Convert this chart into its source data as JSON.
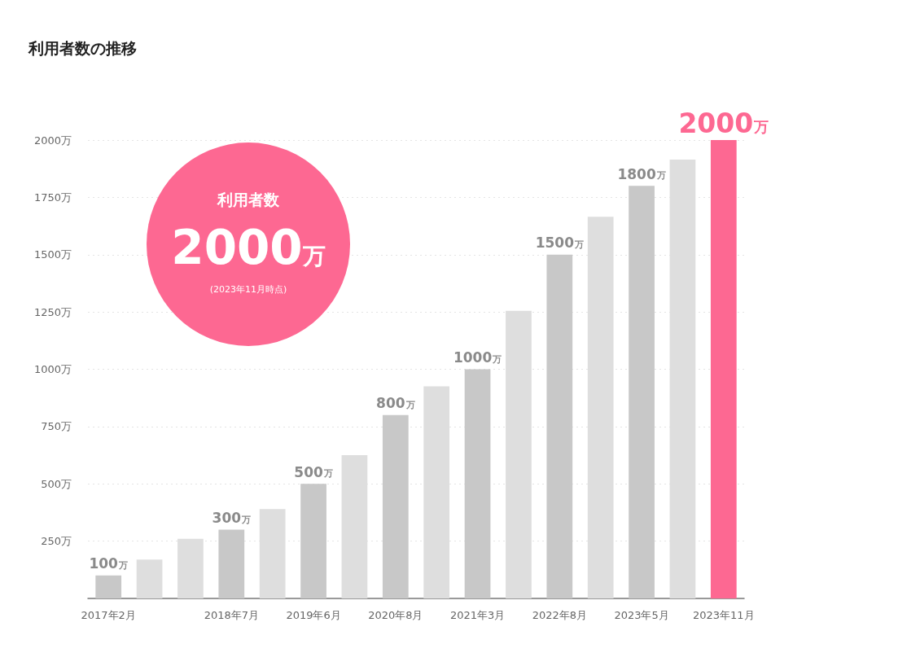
{
  "chart_data": {
    "type": "bar",
    "title": "利用者数の推移",
    "categories": [
      "2017年2月",
      null,
      null,
      "2018年7月",
      null,
      "2019年6月",
      null,
      "2020年8月",
      null,
      "2021年3月",
      null,
      "2022年8月",
      null,
      "2023年5月",
      null,
      "2023年11月"
    ],
    "values": [
      100,
      170,
      260,
      300,
      390,
      500,
      625,
      800,
      925,
      1000,
      1255,
      1500,
      1665,
      1800,
      1915,
      2000
    ],
    "colors": [
      "#c8c8c8",
      "#dedede",
      "#dedede",
      "#c8c8c8",
      "#dedede",
      "#c8c8c8",
      "#dedede",
      "#c8c8c8",
      "#dedede",
      "#c8c8c8",
      "#dedede",
      "#c8c8c8",
      "#dedede",
      "#c8c8c8",
      "#dedede",
      "#fd6892"
    ],
    "value_labels": [
      "100万",
      null,
      null,
      "300万",
      null,
      "500万",
      null,
      "800万",
      null,
      "1000万",
      null,
      "1500万",
      null,
      "1800万",
      null,
      "2000万"
    ],
    "ylim": [
      0,
      2000
    ],
    "yticks": [
      {
        "value": 250,
        "label": "250万"
      },
      {
        "value": 500,
        "label": "500万"
      },
      {
        "value": 750,
        "label": "750万"
      },
      {
        "value": 1000,
        "label": "1000万"
      },
      {
        "value": 1250,
        "label": "1250万"
      },
      {
        "value": 1500,
        "label": "1500万"
      },
      {
        "value": 1750,
        "label": "1750万"
      },
      {
        "value": 2000,
        "label": "2000万"
      }
    ],
    "annotations": [
      "利用者数",
      "2000万",
      "(2023年11月時点)"
    ],
    "grid": "y"
  }
}
